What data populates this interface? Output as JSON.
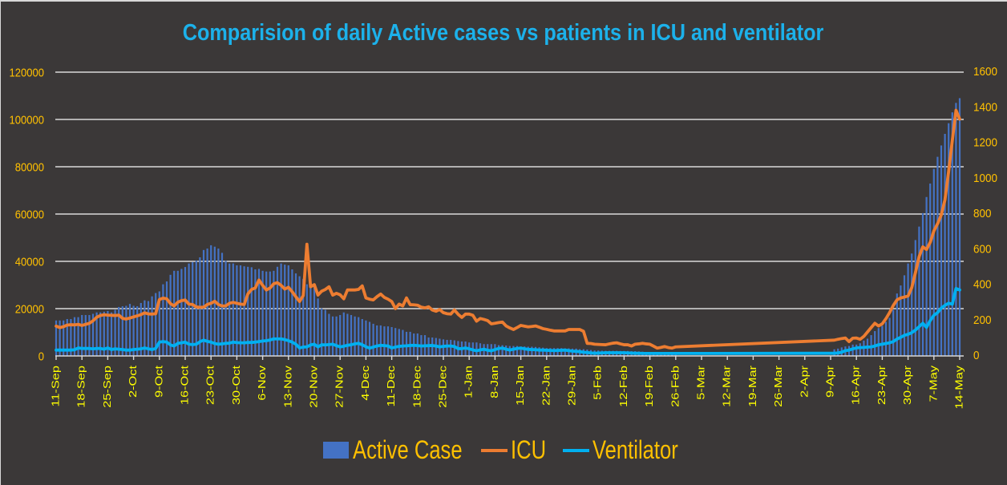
{
  "chart_data": {
    "type": "bar",
    "title": "Comparision of daily Active cases vs patients in ICU and ventilator",
    "xlabel": "",
    "ylabel": "",
    "y2label": "",
    "grid": true,
    "legend_position": "bottom",
    "ylim": [
      0,
      120000
    ],
    "y_ticks": [
      0,
      20000,
      40000,
      60000,
      80000,
      100000,
      120000
    ],
    "y2lim": [
      0,
      1600
    ],
    "y2_ticks": [
      0,
      200,
      400,
      600,
      800,
      1000,
      1200,
      1400,
      1600
    ],
    "x_tick_labels": [
      "11-Sep",
      "18-Sep",
      "25-Sep",
      "2-Oct",
      "9-Oct",
      "16-Oct",
      "23-Oct",
      "30-Oct",
      "6-Nov",
      "13-Nov",
      "20-Nov",
      "27-Nov",
      "4-Dec",
      "11-Dec",
      "18-Dec",
      "25-Dec",
      "1-Jan",
      "8-Jan",
      "15-Jan",
      "22-Jan",
      "29-Jan",
      "5-Feb",
      "12-Feb",
      "19-Feb",
      "26-Feb",
      "5-Mar",
      "12-Mar",
      "19-Mar",
      "26-Mar",
      "2-Apr",
      "9-Apr",
      "16-Apr",
      "23-Apr",
      "30-Apr",
      "7-May",
      "14-May"
    ],
    "x": [
      "11-Sep",
      "12-Sep",
      "13-Sep",
      "14-Sep",
      "15-Sep",
      "16-Sep",
      "17-Sep",
      "18-Sep",
      "19-Sep",
      "20-Sep",
      "21-Sep",
      "22-Sep",
      "23-Sep",
      "24-Sep",
      "25-Sep",
      "26-Sep",
      "27-Sep",
      "28-Sep",
      "29-Sep",
      "30-Sep",
      "1-Oct",
      "2-Oct",
      "3-Oct",
      "4-Oct",
      "5-Oct",
      "6-Oct",
      "7-Oct",
      "8-Oct",
      "9-Oct",
      "10-Oct",
      "11-Oct",
      "12-Oct",
      "13-Oct",
      "14-Oct",
      "15-Oct",
      "16-Oct",
      "17-Oct",
      "18-Oct",
      "19-Oct",
      "20-Oct",
      "21-Oct",
      "22-Oct",
      "23-Oct",
      "24-Oct",
      "25-Oct",
      "26-Oct",
      "27-Oct",
      "28-Oct",
      "29-Oct",
      "30-Oct",
      "31-Oct",
      "1-Nov",
      "2-Nov",
      "3-Nov",
      "4-Nov",
      "5-Nov",
      "6-Nov",
      "7-Nov",
      "8-Nov",
      "9-Nov",
      "10-Nov",
      "11-Nov",
      "12-Nov",
      "13-Nov",
      "14-Nov",
      "15-Nov",
      "16-Nov",
      "17-Nov",
      "18-Nov",
      "19-Nov",
      "20-Nov",
      "21-Nov",
      "22-Nov",
      "23-Nov",
      "24-Nov",
      "25-Nov",
      "26-Nov",
      "27-Nov",
      "28-Nov",
      "29-Nov",
      "30-Nov",
      "1-Dec",
      "2-Dec",
      "3-Dec",
      "4-Dec",
      "5-Dec",
      "6-Dec",
      "7-Dec",
      "8-Dec",
      "9-Dec",
      "10-Dec",
      "11-Dec",
      "12-Dec",
      "13-Dec",
      "14-Dec",
      "15-Dec",
      "16-Dec",
      "17-Dec",
      "18-Dec",
      "19-Dec",
      "20-Dec",
      "21-Dec",
      "22-Dec",
      "23-Dec",
      "24-Dec",
      "25-Dec",
      "26-Dec",
      "27-Dec",
      "28-Dec",
      "29-Dec",
      "30-Dec",
      "31-Dec",
      "1-Jan",
      "2-Jan",
      "3-Jan",
      "4-Jan",
      "5-Jan",
      "6-Jan",
      "7-Jan",
      "8-Jan",
      "9-Jan",
      "10-Jan",
      "11-Jan",
      "12-Jan",
      "13-Jan",
      "14-Jan",
      "15-Jan",
      "16-Jan",
      "17-Jan",
      "18-Jan",
      "19-Jan",
      "20-Jan",
      "21-Jan",
      "22-Jan",
      "23-Jan",
      "24-Jan",
      "25-Jan",
      "26-Jan",
      "27-Jan",
      "28-Jan",
      "29-Jan",
      "30-Jan",
      "31-Jan",
      "1-Feb",
      "2-Feb",
      "3-Feb",
      "4-Feb",
      "5-Feb",
      "6-Feb",
      "7-Feb",
      "8-Feb",
      "9-Feb",
      "10-Feb",
      "11-Feb",
      "12-Feb",
      "13-Feb",
      "14-Feb",
      "15-Feb",
      "16-Feb",
      "17-Feb",
      "18-Feb",
      "19-Feb",
      "20-Feb",
      "21-Feb",
      "22-Feb",
      "23-Feb",
      "24-Feb",
      "25-Feb",
      "26-Feb",
      "27-Feb",
      "28-Feb",
      "1-Mar",
      "2-Mar",
      "3-Mar",
      "4-Mar",
      "5-Mar",
      "6-Mar",
      "7-Mar",
      "8-Mar",
      "9-Mar",
      "10-Mar",
      "11-Mar",
      "12-Mar",
      "13-Mar",
      "14-Mar",
      "15-Mar",
      "16-Mar",
      "17-Mar",
      "18-Mar",
      "19-Mar",
      "20-Mar",
      "21-Mar",
      "22-Mar",
      "23-Mar",
      "24-Mar",
      "25-Mar",
      "26-Mar",
      "27-Mar",
      "28-Mar",
      "29-Mar",
      "30-Mar",
      "31-Mar",
      "1-Apr",
      "2-Apr",
      "3-Apr",
      "4-Apr",
      "5-Apr",
      "6-Apr",
      "7-Apr",
      "8-Apr",
      "9-Apr",
      "10-Apr",
      "11-Apr",
      "12-Apr",
      "13-Apr",
      "14-Apr",
      "15-Apr",
      "16-Apr",
      "17-Apr",
      "18-Apr",
      "19-Apr",
      "20-Apr",
      "21-Apr",
      "22-Apr",
      "23-Apr",
      "24-Apr",
      "25-Apr",
      "26-Apr",
      "27-Apr",
      "28-Apr",
      "29-Apr",
      "30-Apr",
      "1-May",
      "2-May",
      "3-May",
      "4-May",
      "5-May",
      "6-May",
      "7-May",
      "8-May",
      "9-May",
      "10-May",
      "11-May",
      "12-May",
      "13-May",
      "14-May"
    ],
    "series": [
      {
        "name": "Active Case",
        "type": "bar",
        "axis": "left",
        "color": "#4472c4",
        "values": [
          15000,
          15000,
          15000,
          15600,
          15600,
          16400,
          16400,
          17300,
          17300,
          17300,
          17800,
          18400,
          18400,
          18700,
          19000,
          18400,
          19500,
          20700,
          21000,
          21200,
          22000,
          21200,
          21000,
          22400,
          23500,
          23200,
          25200,
          26600,
          27300,
          30300,
          31500,
          34300,
          36000,
          36000,
          36800,
          37600,
          39100,
          39700,
          40300,
          41700,
          44800,
          45400,
          46800,
          46200,
          45400,
          43600,
          40200,
          39100,
          39100,
          38300,
          38300,
          37900,
          37700,
          37500,
          36600,
          36800,
          36000,
          35700,
          35700,
          36000,
          37700,
          39100,
          38600,
          38300,
          36600,
          34900,
          33700,
          32600,
          30300,
          29800,
          29200,
          24300,
          20100,
          19500,
          17800,
          16700,
          16700,
          17300,
          18400,
          17800,
          17300,
          16700,
          16400,
          15600,
          15000,
          14400,
          13600,
          12900,
          12900,
          12500,
          12500,
          12200,
          11800,
          11400,
          11000,
          10200,
          10200,
          9500,
          9500,
          8800,
          8800,
          7800,
          7800,
          7600,
          7300,
          7000,
          6800,
          6800,
          6600,
          6300,
          6100,
          6100,
          5700,
          5700,
          5700,
          5350,
          5000,
          5000,
          5000,
          5000,
          4550,
          4550,
          4400,
          4200,
          4200,
          4200,
          4000,
          4000,
          3900,
          3900,
          3800,
          3650,
          3500,
          3300,
          3300,
          3300,
          3300,
          3300,
          3200,
          3200,
          3100,
          3100,
          2850,
          2850,
          2700,
          2500,
          2300,
          2300,
          2200,
          2150,
          2150,
          2150,
          2150,
          2100,
          2100,
          2100,
          2000,
          2000,
          1900,
          1800,
          1700,
          1600,
          1500,
          1450,
          1400,
          1350,
          1300,
          1250,
          1200,
          null,
          null,
          null,
          null,
          null,
          null,
          null,
          null,
          null,
          null,
          null,
          null,
          null,
          null,
          null,
          null,
          null,
          null,
          null,
          null,
          null,
          null,
          null,
          null,
          null,
          null,
          null,
          null,
          null,
          null,
          null,
          null,
          null,
          null,
          null,
          null,
          null,
          null,
          null,
          null,
          null,
          null,
          2800,
          3100,
          3600,
          4000,
          4200,
          4800,
          4800,
          5350,
          6500,
          7300,
          8800,
          10500,
          11800,
          12700,
          14400,
          16100,
          19500,
          26400,
          29800,
          34100,
          39100,
          43300,
          49000,
          54700,
          60400,
          67200,
          72900,
          79100,
          84200,
          89000,
          93900,
          98400,
          103000,
          107000,
          109000
        ]
      },
      {
        "name": "ICU",
        "type": "line",
        "axis": "right",
        "color": "#ed7d31",
        "values": [
          168,
          160,
          165,
          174,
          176,
          175,
          178,
          172,
          178,
          184,
          198,
          218,
          228,
          232,
          230,
          229,
          228,
          230,
          212,
          208,
          214,
          220,
          226,
          233,
          243,
          237,
          236,
          238,
          318,
          326,
          322,
          295,
          282,
          303,
          312,
          315,
          292,
          290,
          276,
          274,
          275,
          290,
          297,
          308,
          290,
          282,
          282,
          297,
          302,
          297,
          292,
          290,
          350,
          375,
          383,
          428,
          398,
          372,
          383,
          407,
          413,
          398,
          377,
          387,
          362,
          334,
          307,
          340,
          630,
          390,
          402,
          343,
          365,
          375,
          390,
          343,
          353,
          345,
          322,
          372,
          372,
          372,
          375,
          395,
          327,
          320,
          316,
          334,
          349,
          330,
          320,
          307,
          267,
          292,
          282,
          327,
          289,
          288,
          286,
          275,
          271,
          277,
          259,
          252,
          262,
          244,
          238,
          236,
          259,
          235,
          217,
          236,
          236,
          229,
          196,
          211,
          206,
          199,
          181,
          184,
          188,
          191,
          169,
          158,
          149,
          160,
          172,
          168,
          164,
          166,
          169,
          162,
          154,
          150,
          145,
          141,
          141,
          141,
          141,
          149,
          149,
          149,
          149,
          139,
          71,
          70,
          66,
          65,
          64,
          63,
          68,
          72,
          74,
          68,
          63,
          63,
          56,
          66,
          68,
          71,
          68,
          66,
          55,
          44,
          48,
          53,
          47,
          44,
          51,
          null,
          null,
          null,
          null,
          null,
          null,
          null,
          null,
          null,
          null,
          null,
          null,
          null,
          null,
          null,
          null,
          null,
          null,
          null,
          null,
          null,
          null,
          null,
          null,
          null,
          null,
          null,
          null,
          null,
          null,
          null,
          null,
          null,
          null,
          null,
          null,
          null,
          null,
          null,
          null,
          null,
          null,
          89,
          94,
          98,
          101,
          81,
          100,
          101,
          94,
          110,
          135,
          160,
          184,
          169,
          181,
          210,
          245,
          285,
          316,
          327,
          332,
          338,
          385,
          470,
          560,
          615,
          600,
          640,
          705,
          745,
          795,
          880,
          1040,
          1215,
          1385,
          1335
        ]
      },
      {
        "name": "Ventilator",
        "type": "line",
        "axis": "right",
        "color": "#00b0f0",
        "values": [
          33,
          33,
          33,
          33,
          33,
          35,
          45,
          42,
          42,
          42,
          40,
          42,
          42,
          38,
          45,
          36,
          40,
          38,
          36,
          33,
          33,
          36,
          38,
          40,
          45,
          40,
          36,
          42,
          78,
          81,
          78,
          62,
          56,
          71,
          74,
          78,
          66,
          64,
          66,
          80,
          89,
          82,
          78,
          70,
          66,
          68,
          71,
          72,
          78,
          75,
          74,
          74,
          76,
          76,
          78,
          81,
          84,
          86,
          90,
          96,
          96,
          96,
          92,
          86,
          78,
          66,
          45,
          50,
          51,
          62,
          66,
          51,
          63,
          62,
          64,
          66,
          58,
          51,
          55,
          60,
          63,
          68,
          71,
          63,
          52,
          44,
          50,
          56,
          60,
          58,
          56,
          45,
          50,
          54,
          56,
          57,
          59,
          60,
          58,
          56,
          57,
          58,
          59,
          56,
          51,
          54,
          56,
          56,
          53,
          41,
          41,
          45,
          40,
          34,
          29,
          34,
          38,
          32,
          29,
          36,
          42,
          44,
          38,
          33,
          38,
          42,
          44,
          40,
          37,
          36,
          35,
          33,
          33,
          32,
          31,
          30,
          31,
          32,
          33,
          30,
          27,
          26,
          24,
          21,
          19,
          17,
          15,
          16,
          17,
          18,
          18,
          18,
          18,
          18,
          18,
          17,
          16,
          15,
          15,
          14,
          14,
          14,
          14,
          14,
          14,
          14,
          14,
          14,
          14,
          null,
          null,
          null,
          null,
          null,
          null,
          null,
          null,
          null,
          null,
          null,
          null,
          null,
          null,
          null,
          null,
          null,
          null,
          null,
          null,
          null,
          null,
          null,
          null,
          null,
          null,
          null,
          null,
          null,
          null,
          null,
          null,
          null,
          null,
          null,
          null,
          null,
          null,
          null,
          null,
          null,
          null,
          15,
          17,
          21,
          30,
          33,
          40,
          45,
          47,
          48,
          50,
          51,
          56,
          63,
          66,
          70,
          74,
          81,
          95,
          105,
          116,
          122,
          131,
          146,
          165,
          184,
          161,
          199,
          229,
          244,
          270,
          285,
          297,
          292,
          380,
          372
        ]
      }
    ]
  },
  "colors": {
    "background": "#3b3838",
    "title": "#1cb1ea",
    "axis_labels": "#ffc000",
    "x_tick_labels": "#ffff00",
    "gridlines": "#d9d9d9"
  }
}
